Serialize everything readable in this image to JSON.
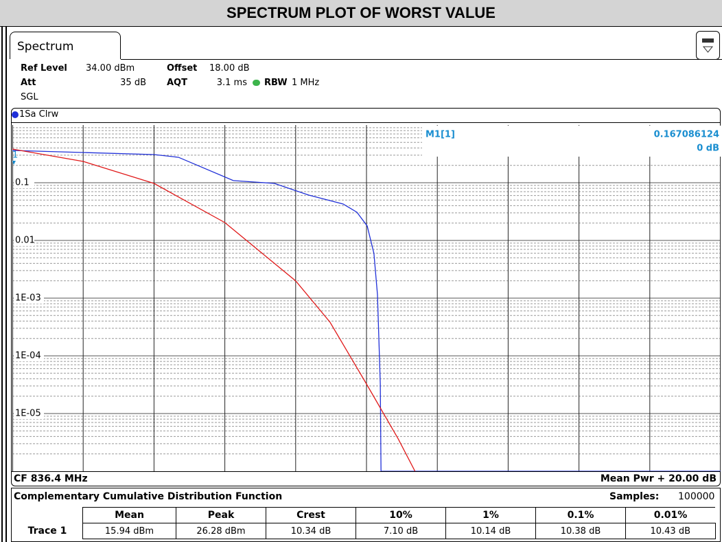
{
  "title": "SPECTRUM PLOT OF WORST VALUE",
  "tab": "Spectrum",
  "settings": {
    "ref_level_label": "Ref Level",
    "ref_level": "34.00 dBm",
    "offset_label": "Offset",
    "offset": "18.00 dB",
    "att_label": "Att",
    "att": "35 dB",
    "aqt_label": "AQT",
    "aqt": "3.1 ms",
    "rbw_label": "RBW",
    "rbw": "1 MHz",
    "mode": "SGL"
  },
  "trace_label": "1Sa Clrw",
  "chart_data": {
    "type": "line",
    "log_y": true,
    "grid": true,
    "xlim": [
      0,
      20
    ],
    "xticks": [
      0,
      2,
      4,
      6,
      8,
      10,
      12,
      14,
      16,
      18,
      20
    ],
    "ylim": [
      1e-06,
      1
    ],
    "yticks": [
      0.1,
      0.01,
      {
        "value": 0.001,
        "label": "1E-03"
      },
      {
        "value": 0.0001,
        "label": "1E-04"
      },
      {
        "value": 1e-05,
        "label": "1E-05"
      }
    ],
    "series": [
      {
        "color": "#1f2fd8",
        "x": [
          0,
          2,
          4,
          4.69,
          6.24,
          7.4,
          8.37,
          9.34,
          9.73,
          10.02,
          10.21,
          10.31,
          10.39,
          10.41,
          20
        ],
        "values": [
          0.363,
          0.334,
          0.308,
          0.276,
          0.109,
          0.0973,
          0.0611,
          0.0428,
          0.0308,
          0.0178,
          0.00594,
          0.00115,
          3.25e-05,
          1e-06,
          1e-06
        ]
      },
      {
        "color": "#e01818",
        "x": [
          0,
          2,
          4,
          6,
          8,
          8.97,
          10,
          10.9,
          11.37
        ],
        "values": [
          0.383,
          0.234,
          0.0973,
          0.0204,
          0.00199,
          0.000383,
          3.25e-05,
          3.6e-06,
          1e-06
        ]
      }
    ],
    "marker": {
      "name": "M1[1]",
      "value": "0.167086124",
      "position": "0 dB",
      "label": "1"
    }
  },
  "footer": {
    "left": "CF 836.4 MHz",
    "right": "Mean Pwr + 20.00 dB"
  },
  "results": {
    "title": "Complementary Cumulative Distribution Function",
    "samples_label": "Samples:",
    "samples": 100000,
    "columns": [
      "Mean",
      "Peak",
      "Crest",
      "10%",
      "1%",
      "0.1%",
      "0.01%"
    ],
    "rows": [
      {
        "name": "Trace 1",
        "cells": [
          "15.94 dBm",
          "26.28 dBm",
          "10.34 dB",
          "7.10 dB",
          "10.14 dB",
          "10.38 dB",
          "10.43 dB"
        ]
      }
    ]
  }
}
